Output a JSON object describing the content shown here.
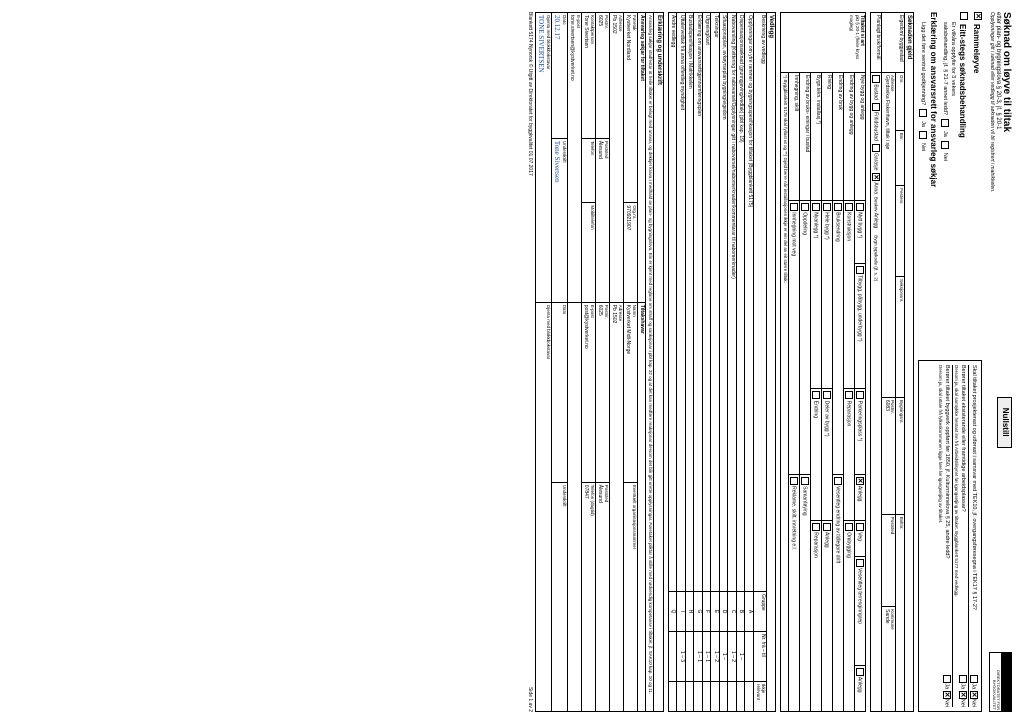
{
  "header": {
    "title": "Søknad om løyve til tiltak",
    "sub1": "etter plan- og bygningslova § 20-3, jf. § 20-1",
    "sub2": "Opplysningar gitt i søknad eller vedlegg til søknaden vil bli registrert i matrikkelen.",
    "nullstill": "Nullstill",
    "logo_text": "DIREKTORATET FOR BYGGKVALITET"
  },
  "top_checks": {
    "ramme": {
      "label": "Rammeløyve",
      "checked": true
    },
    "eittstegs": {
      "label": "Eitt-stegs søknadsbehandling",
      "checked": false
    },
    "line1": "Er vilkåra oppfylte for 3 vekers",
    "line2": "saksbehandling, jf. § 21-7 annet ledd?",
    "ja": "Ja",
    "nei": "Nei"
  },
  "erkl_title": "Erklæring om ansvarsrett for ansvarleg søkjar",
  "erkl_q": "Ligg det føre sentral godkjenning?",
  "right_questions": {
    "q1": "Skal tiltaket prosjekterast og utførast i samsvar med TEK10, jf. overgangsføresegna i TEK17 § 17-2?",
    "q2": "Berører tiltaket eksisterande eller framtidige arbeidsplassar?",
    "q2b": "Dersom ja, skal samtykke hentast inn frå Arbeidstilsynet før igangsetjing av tiltaket. Byggblankett 5177 med vedlegg.",
    "q3": "Berører tiltaket byggverk oppført før 1850, jf. Kulturminnelova § 25, andre ledd?",
    "q3b": "Dersom ja, skal uttale frå fylkeskommunen ligge føre før igangsetjing av tiltaket."
  },
  "soknad": {
    "label": "Søknaden gjeld",
    "gnr": "Gnr.",
    "bnr": "Bnr.",
    "festenr": "Festenr.",
    "seksjonsnr": "Seksjonsnr.",
    "bygningsnr": "Bygningsnr.",
    "boltnr": "Boltnr.",
    "eig_lbl": "Eigedom/ byggjestad",
    "adresse_lbl": "Adresse",
    "adresse": "Gjerdsvika Fiskerihavn, tiltak i sjø",
    "postnr_lbl": "Postnr.",
    "postnr": "6083",
    "poststed_lbl": "Poststed",
    "kommune_lbl": "Kommune",
    "kommune": "Sande"
  },
  "plan": {
    "label": "Planlagt bruk/formål",
    "bustad": "Bustad",
    "fritid": "Fritidsbustad",
    "garasje": "Garasje",
    "anna": "Anna:",
    "anna_val": "Anlegg",
    "anna_chk": true,
    "beskriv": "Beskriv",
    "bygn_lbl": "Bygn.typekode (jf. s. 2)"
  },
  "tiltak": {
    "label": "Tiltaket si art",
    "sub": "pkt § 20-1 (fleire kryss mogleg)",
    "nye": "Nye bygg og anlegg",
    "nytt": "Nytt bygg *)",
    "tilbygg": "Tilbygg, påbygg, underbygg *)",
    "park": "Parkeringsplass *)",
    "anlegg": "Anlegg",
    "anlegg_chk": true,
    "veg": "Veg",
    "terr": "Vesentleg terrenginngrep",
    "anlegg2": "Anlegg",
    "endr_bygg": "Endring av bygg og anlegg",
    "konstr": "Konstruksjon",
    "rep": "Reparasjon",
    "ombygg": "Ombygging",
    "endr_bruk": "Endring av bruk",
    "bruks": "Bruksendring",
    "ves": "Vesentleg endring av tidlegare drift",
    "riving": "Riving",
    "hele": "Hele bygg *)",
    "deler": "Deler av bygg *)",
    "anlegg3": "Anlegg",
    "bygn_tekn": "Bygn.tekn. installasj.*)",
    "nyanl": "Nyanlegg *)",
    "endring": "Endring",
    "rep2": "Reparasjon",
    "endr_bol": "Endring av bruks- einingar i bustad",
    "opp": "Oppdeling",
    "saman": "Samanføying",
    "innh": "Innhegning, skilt",
    "innhmot": "Innhegning mot veg",
    "rekl": "Reklame, skilt, innretning e.l.",
    "note": "*) Byggblankett 5175 skal fyllast ut og **) Gjeld berre når installasjonen ikkje er ein del av eit større tiltak."
  },
  "vedlegg": {
    "title": "Vedlegg",
    "beskr": "Beskriving av vedlegg",
    "gruppe": "Gruppe",
    "nr": "Nr. frå – til",
    "ikke": "Ikkje relevant",
    "rows": [
      {
        "t": "Opplysningar om ytre rammer og bygningsspesifikasjon for tiltaket (Byggblankett 5175)",
        "g": "A",
        "n": ""
      },
      {
        "t": "Dispensasjonssøknad (grunngjeving/vedtak) (pbl kap. 19)",
        "g": "B",
        "n": "1 –"
      },
      {
        "t": "Nabovarsling (Kvittering for nabovarsel/Opplysningar gitt i nabovarsel/nabomerknader/kommentarar til nabomerknader)",
        "g": "C",
        "n": "1 – 2"
      },
      {
        "t": "Situasjonsplan, avkøyrseplan bygning/eigedom",
        "g": "D",
        "n": "1 –"
      },
      {
        "t": "Teikningar",
        "g": "E",
        "n": "1 – 2"
      },
      {
        "t": "Utgreiing/kart",
        "g": "F",
        "n": "1 – 1"
      },
      {
        "t": "Erklæring om ansvarsrett/gjennomføringsplan",
        "g": "G",
        "n": "1 – 1"
      },
      {
        "t": "Bustadspesifikasjon i Matrikkelen",
        "g": "H",
        "n": ""
      },
      {
        "t": "Uttale/vedtak frå anna offentleg myndigheit",
        "g": "I",
        "n": "1 – 3"
      },
      {
        "t": "Andre vedlegg",
        "g": "Q",
        "n": ""
      }
    ]
  },
  "erkl2": {
    "title": "Erklæring og underskrift",
    "t1": "Ansvarleg søkjar stadfestar at heile tiltaket er belagt med ansvar, og dekkjer krava i medhald av plan- og bygningslova. Ein er kjent med reglane om straff og sanksjonar i pbl kap. 32 og at det kan medføre reaksjonar dersom det blir gitt urette opplysningar. Føretaket pliktar å stille med nødvendig kompetanse i tiltaket, jf. SAK10 kap. 10 og 11.",
    "as_lbl": "Ansvarleg søkjar for tiltaket",
    "th_lbl": "Tiltakshavar",
    "foretak_lbl": "Føretak",
    "foretak": "Kystverket Nordland",
    "org_lbl": "Org.nr.",
    "org": "970921907",
    "navn_lbl": "Namn",
    "navn": "Kystverket Midt-Norge",
    "evnorg": "Eventuelt organisasjonsnummer",
    "adresse_lbl": "Adresse",
    "adresse1": "Pb 1502",
    "adresse2": "Pb 1502",
    "pnr_lbl": "Postnr.",
    "psted_lbl": "Poststed",
    "pnr1": "6025",
    "psted1": "Ålesund",
    "pnr2": "6025",
    "psted2": "Ålesund",
    "kp_lbl": "Kontaktperson",
    "kp": "Tone Sivertsen",
    "tel_lbl": "Telefon",
    "mob_lbl": "Mobiltelefon",
    "ep_lbl": "E-post",
    "ep1": "tone.sivertsen@kystverket.no",
    "ep2": "post@kystverket.no",
    "tlf2_lbl": "Telefon (dagtid)",
    "tlf2": "07847",
    "dato_lbl": "Dato",
    "dato": "20.12.17",
    "und_lbl": "Underskrift",
    "und": "Tone Sivertsen",
    "gm": "Gjenta med blokkbokstavar",
    "gm1": "TONE SIVERTSEN"
  },
  "footer": {
    "left": "Blankett 5174  Nynorsk  © Utgitt av Direktoratet for byggkvalitet  01.07.2017",
    "right": "Side 1 av 2"
  }
}
